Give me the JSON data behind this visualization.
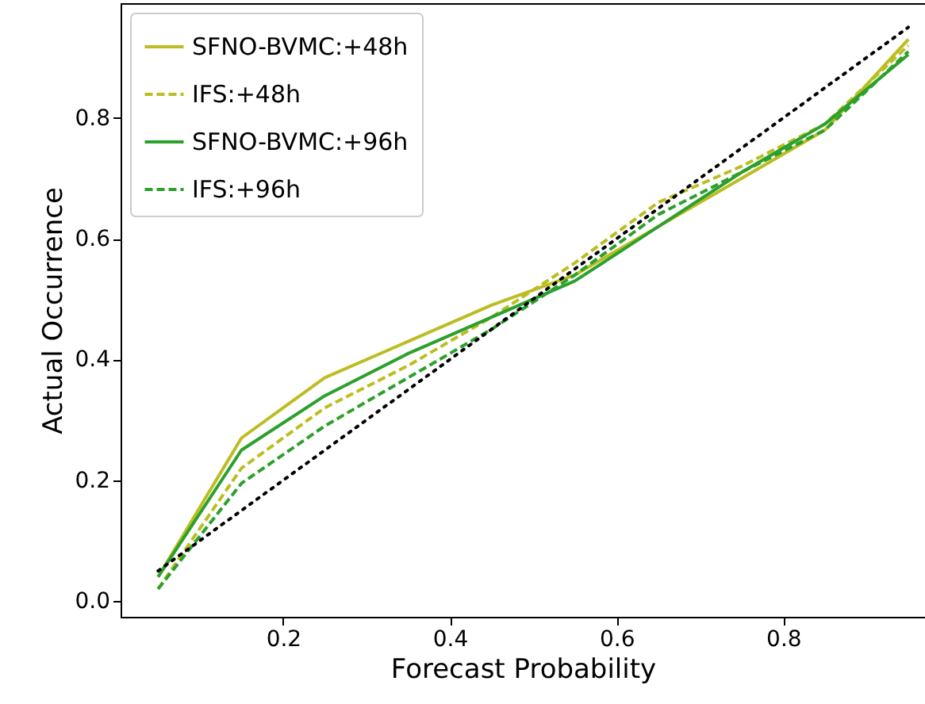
{
  "chart_data": {
    "type": "line",
    "xlabel": "Forecast Probability",
    "ylabel": "Actual Occurrence",
    "x": [
      0.05,
      0.15,
      0.25,
      0.35,
      0.45,
      0.55,
      0.65,
      0.75,
      0.85,
      0.95
    ],
    "series": [
      {
        "name": "SFNO-BVMC:+48h",
        "color": "#bcbd22",
        "line_style": "solid",
        "values": [
          0.04,
          0.27,
          0.37,
          0.43,
          0.49,
          0.54,
          0.62,
          0.7,
          0.78,
          0.93
        ]
      },
      {
        "name": "IFS:+48h",
        "color": "#bcbd22",
        "line_style": "dashed",
        "values": [
          0.02,
          0.22,
          0.32,
          0.39,
          0.47,
          0.56,
          0.66,
          0.72,
          0.79,
          0.92
        ]
      },
      {
        "name": "SFNO-BVMC:+96h",
        "color": "#2ca02c",
        "line_style": "solid",
        "values": [
          0.04,
          0.25,
          0.34,
          0.41,
          0.47,
          0.53,
          0.62,
          0.71,
          0.79,
          0.905
        ]
      },
      {
        "name": "IFS:+96h",
        "color": "#2ca02c",
        "line_style": "dashed",
        "values": [
          0.02,
          0.195,
          0.29,
          0.37,
          0.45,
          0.54,
          0.64,
          0.71,
          0.78,
          0.91
        ]
      },
      {
        "color": "#000000",
        "line_style": "dotted",
        "x": [
          0.05,
          0.95
        ],
        "values": [
          0.05,
          0.95
        ]
      }
    ],
    "xlim": [
      0.005,
      0.97
    ],
    "ylim": [
      -0.026,
      0.99
    ],
    "xticks": [
      0.2,
      0.4,
      0.6,
      0.8
    ],
    "yticks": [
      {
        "value": 0,
        "label": "0.0"
      },
      0.2,
      0.4,
      0.6,
      0.8
    ],
    "grid": false,
    "legend": "top left",
    "marker": "none"
  }
}
